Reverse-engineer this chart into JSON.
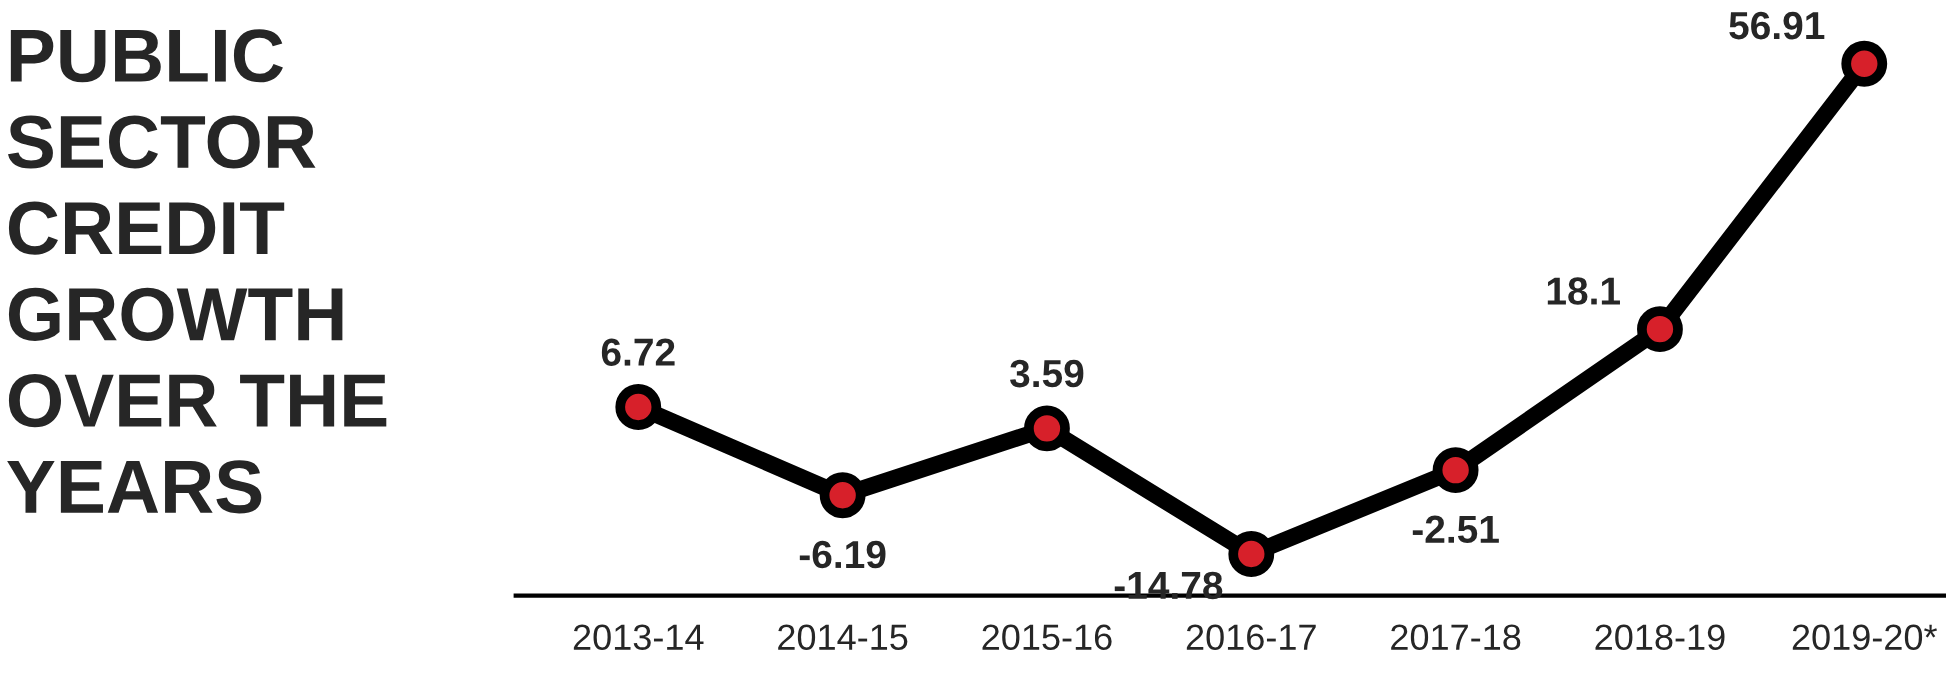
{
  "chart_data": {
    "type": "line",
    "title": "PUBLIC\nSECTOR\nCREDIT\nGROWTH\nOVER THE\nYEARS",
    "categories": [
      "2013-14",
      "2014-15",
      "2015-16",
      "2016-17",
      "2017-18",
      "2018-19",
      "2019-20*"
    ],
    "series": [
      {
        "color": "#000000",
        "values": [
          6.72,
          -6.19,
          3.59,
          -14.78,
          -2.51,
          18.1,
          56.91
        ]
      }
    ],
    "data_labels": true,
    "marker": "circle",
    "line_style": "solid",
    "grid": false
  }
}
